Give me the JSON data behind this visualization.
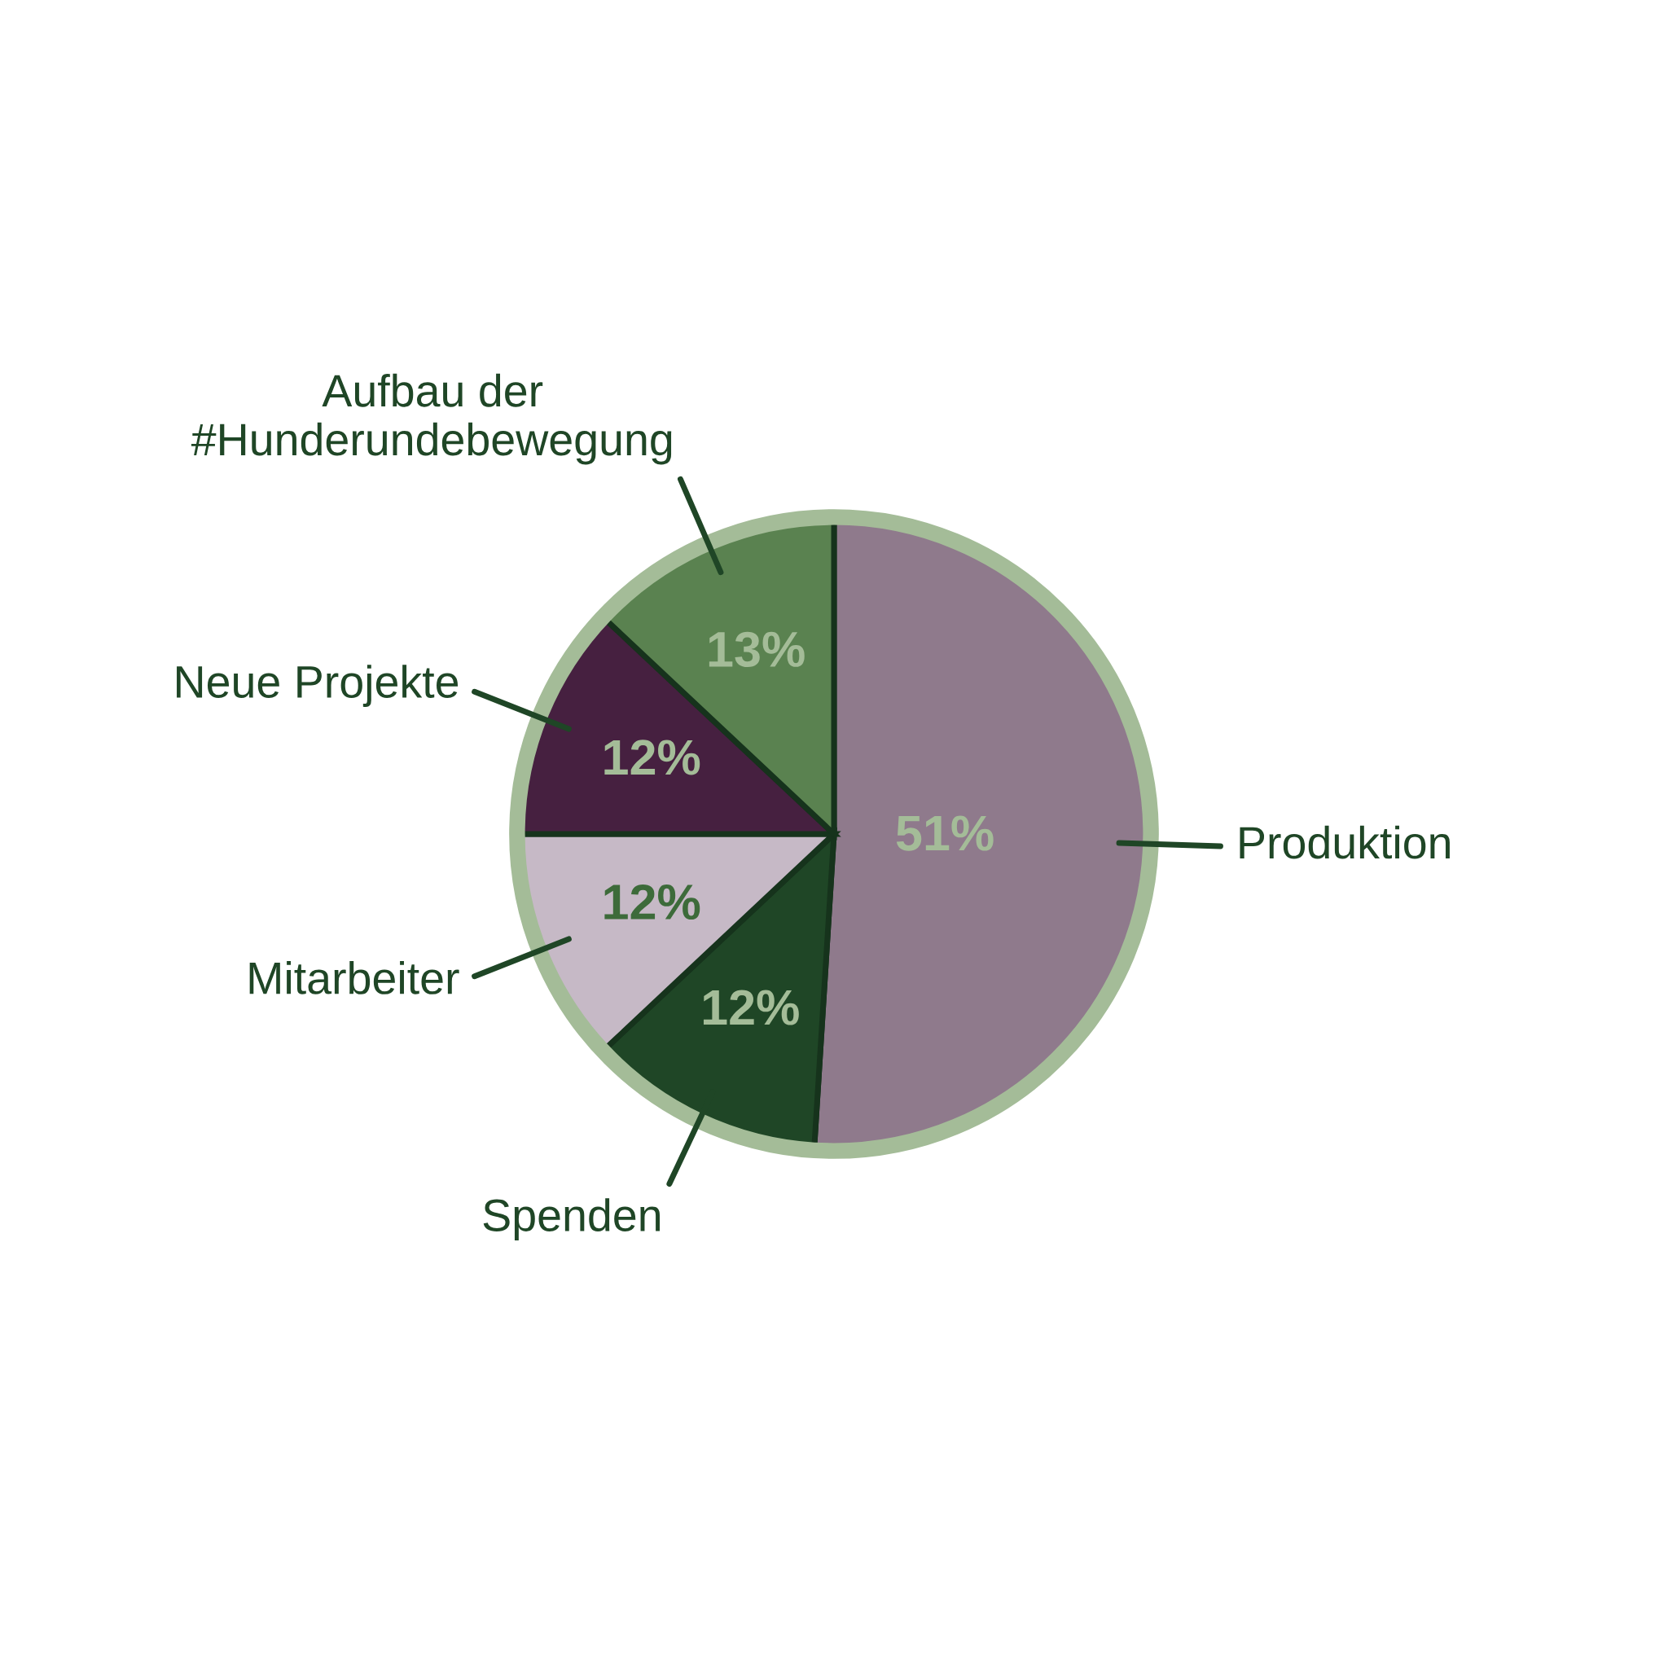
{
  "chart_data": {
    "type": "pie",
    "categories": [
      "Produktion",
      "Spenden",
      "Mitarbeiter",
      "Neue Projekte",
      "Aufbau der\n#Hunderundebewegung"
    ],
    "values": [
      51,
      12,
      12,
      12,
      13
    ],
    "colors": [
      "#8f7a8c",
      "#1f4626",
      "#c6b9c6",
      "#462040",
      "#5a8250"
    ],
    "value_labels": [
      "51%",
      "12%",
      "12%",
      "12%",
      "13%"
    ],
    "legend": false
  }
}
